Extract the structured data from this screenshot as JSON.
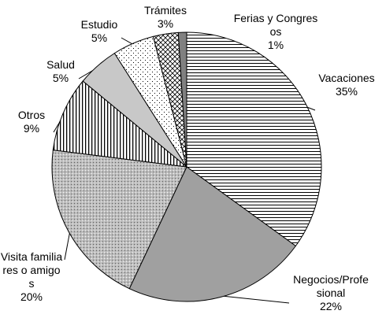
{
  "chart_data": {
    "type": "pie",
    "categories": [
      "Vacaciones",
      "Negocios/Profesional",
      "Visita familiares o amigos",
      "Otros",
      "Salud",
      "Estudio",
      "Trámites",
      "Ferias y Congresos"
    ],
    "values": [
      35,
      22,
      20,
      9,
      5,
      5,
      3,
      1
    ],
    "value_labels": [
      "35%",
      "22%",
      "20%",
      "9%",
      "5%",
      "5%",
      "3%",
      "1%"
    ],
    "colors": [
      "#000000",
      "#a0a0a0",
      "#bdbdbd",
      "#000000",
      "#c8c8c8",
      "#000000",
      "#000000",
      "#808080"
    ]
  }
}
